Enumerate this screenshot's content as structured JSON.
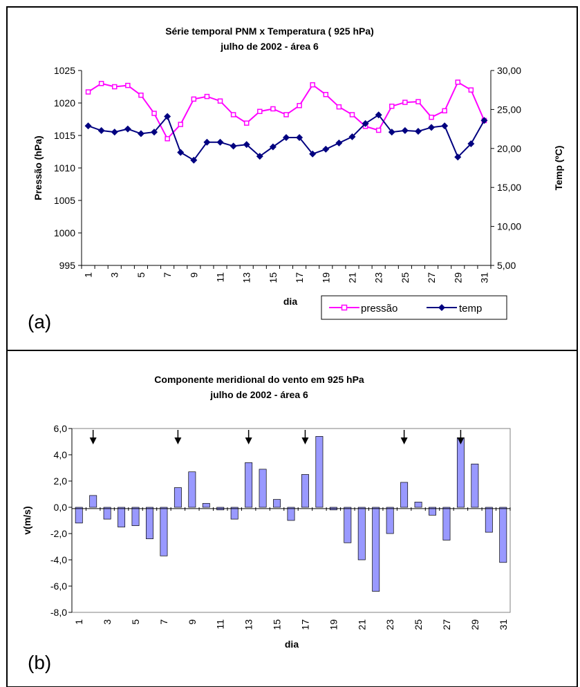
{
  "chart_data": [
    {
      "type": "line",
      "panel_label": "(a)",
      "title_line1": "Série temporal PNM  x Temperatura ( 925 hPa)",
      "title_line2": "julho de 2002 - área 6",
      "xlabel": "dia",
      "ylabel_left": "Pressão (hPa)",
      "ylabel_right": "Temp (ºC)",
      "ylim_left": [
        995,
        1025
      ],
      "ylim_right": [
        5,
        30
      ],
      "left_ticks": [
        "995",
        "1000",
        "1005",
        "1010",
        "1015",
        "1020",
        "1025"
      ],
      "right_ticks": [
        "5,00",
        "10,00",
        "15,00",
        "20,00",
        "25,00",
        "30,00"
      ],
      "x_ticks": [
        "1",
        "3",
        "5",
        "7",
        "9",
        "11",
        "13",
        "15",
        "17",
        "19",
        "21",
        "23",
        "25",
        "27",
        "29",
        "31"
      ],
      "grid": false,
      "legend_position": "bottom-right",
      "x": [
        1,
        2,
        3,
        4,
        5,
        6,
        7,
        8,
        9,
        10,
        11,
        12,
        13,
        14,
        15,
        16,
        17,
        18,
        19,
        20,
        21,
        22,
        23,
        24,
        25,
        26,
        27,
        28,
        29,
        30,
        31
      ],
      "series": [
        {
          "name": "pressão",
          "axis": "left",
          "color": "#ff00ff",
          "marker": "square",
          "values": [
            1021.7,
            1023.0,
            1022.5,
            1022.7,
            1021.2,
            1018.4,
            1014.5,
            1016.7,
            1020.6,
            1021.0,
            1020.3,
            1018.2,
            1016.9,
            1018.7,
            1019.1,
            1018.2,
            1019.6,
            1022.8,
            1021.3,
            1019.4,
            1018.2,
            1016.4,
            1015.8,
            1019.5,
            1020.1,
            1020.2,
            1017.8,
            1018.8,
            1023.2,
            1022.0,
            1017.3
          ]
        },
        {
          "name": "temp",
          "axis": "right",
          "color": "#000080",
          "marker": "diamond",
          "values": [
            22.9,
            22.3,
            22.1,
            22.5,
            21.9,
            22.1,
            24.1,
            19.5,
            18.5,
            20.8,
            20.8,
            20.3,
            20.5,
            19.0,
            20.2,
            21.4,
            21.4,
            19.3,
            19.9,
            20.7,
            21.5,
            23.2,
            24.3,
            22.1,
            22.3,
            22.2,
            22.7,
            22.9,
            18.9,
            20.6,
            23.6
          ]
        }
      ]
    },
    {
      "type": "bar",
      "panel_label": "(b)",
      "title_line1": "Componente meridional do vento em 925 hPa",
      "title_line2": "julho de 2002 - área 6",
      "xlabel": "dia",
      "ylabel": "v(m/s)",
      "ylim": [
        -8,
        6
      ],
      "y_ticks": [
        "-8,0",
        "-6,0",
        "-4,0",
        "-2,0",
        "0,0",
        "2,0",
        "4,0",
        "6,0"
      ],
      "x_ticks": [
        "1",
        "3",
        "5",
        "7",
        "9",
        "11",
        "13",
        "15",
        "17",
        "19",
        "21",
        "23",
        "25",
        "27",
        "29",
        "31"
      ],
      "grid": false,
      "bar_color": "#9999ff",
      "categories": [
        1,
        2,
        3,
        4,
        5,
        6,
        7,
        8,
        9,
        10,
        11,
        12,
        13,
        14,
        15,
        16,
        17,
        18,
        19,
        20,
        21,
        22,
        23,
        24,
        25,
        26,
        27,
        28,
        29,
        30,
        31
      ],
      "values": [
        -1.2,
        0.9,
        -0.9,
        -1.5,
        -1.4,
        -2.4,
        -3.7,
        1.5,
        2.7,
        0.3,
        -0.2,
        -0.9,
        3.4,
        2.9,
        0.6,
        -1.0,
        2.5,
        5.4,
        -0.2,
        -2.7,
        -4.0,
        -6.4,
        -2.0,
        1.9,
        0.4,
        -0.6,
        -2.5,
        5.3,
        3.3,
        -1.9,
        -4.2
      ],
      "arrow_days": [
        2,
        8,
        13,
        17,
        24,
        28
      ]
    }
  ]
}
